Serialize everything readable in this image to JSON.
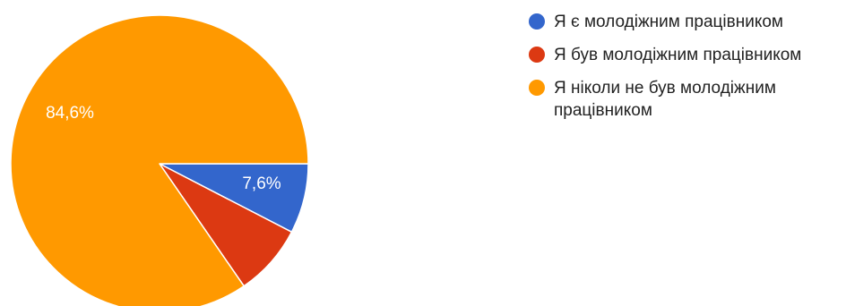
{
  "chart_data": {
    "type": "pie",
    "title": "",
    "slices": [
      {
        "label": "Я є молодіжним працівником",
        "value": 7.6,
        "value_label": "7,6%",
        "color": "#3366cc"
      },
      {
        "label": "Я був молодіжним працівником",
        "value": 7.8,
        "value_label": "",
        "color": "#dc3912"
      },
      {
        "label": "Я ніколи не був молодіжним працівником",
        "value": 84.6,
        "value_label": "84,6%",
        "color": "#ff9900"
      }
    ],
    "legend_position": "right",
    "start_angle": "3 o'clock",
    "direction": "clockwise"
  }
}
